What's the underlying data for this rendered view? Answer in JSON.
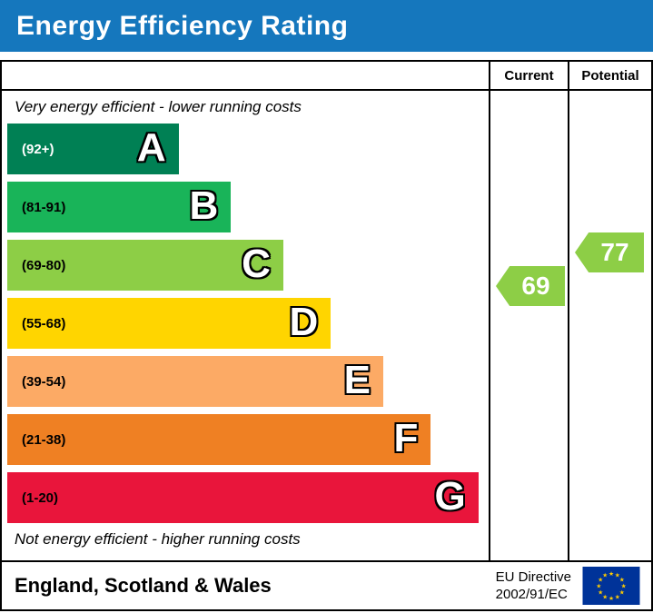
{
  "title": "Energy Efficiency Rating",
  "columns": {
    "current": "Current",
    "potential": "Potential"
  },
  "captions": {
    "top": "Very energy efficient - lower running costs",
    "bottom": "Not energy efficient - higher running costs"
  },
  "bands": [
    {
      "letter": "A",
      "range_label": "(92+)",
      "min": 92,
      "max": 100,
      "color": "#008054",
      "label_color": "#ffffff",
      "width_pct": 36
    },
    {
      "letter": "B",
      "range_label": "(81-91)",
      "min": 81,
      "max": 91,
      "color": "#19b459",
      "label_color": "#000000",
      "width_pct": 47
    },
    {
      "letter": "C",
      "range_label": "(69-80)",
      "min": 69,
      "max": 80,
      "color": "#8dce46",
      "label_color": "#000000",
      "width_pct": 58
    },
    {
      "letter": "D",
      "range_label": "(55-68)",
      "min": 55,
      "max": 68,
      "color": "#ffd500",
      "label_color": "#000000",
      "width_pct": 68
    },
    {
      "letter": "E",
      "range_label": "(39-54)",
      "min": 39,
      "max": 54,
      "color": "#fcaa65",
      "label_color": "#000000",
      "width_pct": 79
    },
    {
      "letter": "F",
      "range_label": "(21-38)",
      "min": 21,
      "max": 38,
      "color": "#ef8023",
      "label_color": "#000000",
      "width_pct": 89
    },
    {
      "letter": "G",
      "range_label": "(1-20)",
      "min": 1,
      "max": 20,
      "color": "#e9153b",
      "label_color": "#000000",
      "width_pct": 99
    }
  ],
  "ratings": {
    "current": {
      "value": 69,
      "color": "#8dce46"
    },
    "potential": {
      "value": 77,
      "color": "#8dce46"
    }
  },
  "footer": {
    "region": "England, Scotland & Wales",
    "directive": [
      "EU Directive",
      "2002/91/EC"
    ]
  },
  "colors": {
    "header_bg": "#1577bd",
    "border": "#000000",
    "flag_bg": "#003399",
    "flag_star": "#ffcc00"
  },
  "chart_data": {
    "type": "bar",
    "title": "Energy Efficiency Rating",
    "orientation": "horizontal",
    "categories": [
      "A",
      "B",
      "C",
      "D",
      "E",
      "F",
      "G"
    ],
    "band_ranges": [
      "92+",
      "81-91",
      "69-80",
      "55-68",
      "39-54",
      "21-38",
      "1-20"
    ],
    "band_colors": [
      "#008054",
      "#19b459",
      "#8dce46",
      "#ffd500",
      "#fcaa65",
      "#ef8023",
      "#e9153b"
    ],
    "bar_length_pct_of_chart_width": [
      36,
      47,
      58,
      68,
      79,
      89,
      99
    ],
    "current_rating": 69,
    "current_rating_band": "C",
    "potential_rating": 77,
    "potential_rating_band": "C",
    "top_caption": "Very energy efficient - lower running costs",
    "bottom_caption": "Not energy efficient - higher running costs",
    "footnote": "England, Scotland & Wales · EU Directive 2002/91/EC"
  }
}
